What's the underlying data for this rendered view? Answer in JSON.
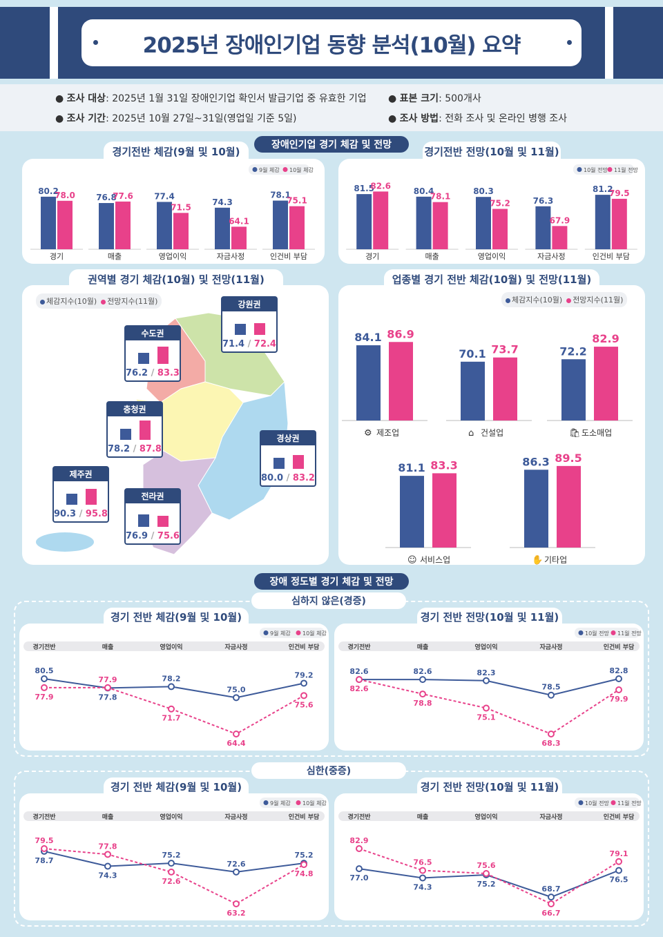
{
  "title": "2025년 장애인기업 동향 분석(10월) 요약",
  "info": {
    "target_label": "조사 대상",
    "target": ": 2025년 1월 31일 장애인기업 확인서 발급기업 중 유효한 기업",
    "period_label": "조사 기간",
    "period": ": 2025년 10월 27일~31일(영업일 기준 5일)",
    "sample_label": "표본 크기",
    "sample": ": 500개사",
    "method_label": "조사 방법",
    "method": ":  전화 조사 및 온라인 병행 조사"
  },
  "colors": {
    "series1": "#3d5a99",
    "series2": "#e8418a",
    "navy": "#2f4a7b"
  },
  "section1": "장애인기업 경기 체감 및 전망",
  "section2": "장애 정도별 경기 체감 및 전망",
  "mild": "심하지 않은(경증)",
  "severe": "심한(중증)",
  "chart_data": [
    {
      "id": "overall-perception",
      "type": "bar",
      "title": "경기전반 체감(9월 및 10월)",
      "categories": [
        "경기",
        "매출",
        "영업이익",
        "자금사정",
        "인건비 부담"
      ],
      "series": [
        {
          "name": "9월 체감",
          "values": [
            80.2,
            76.8,
            77.4,
            74.3,
            78.1
          ]
        },
        {
          "name": "10월 체감",
          "values": [
            78.0,
            77.6,
            71.5,
            64.1,
            75.1
          ]
        }
      ]
    },
    {
      "id": "overall-outlook",
      "type": "bar",
      "title": "경기전반 전망(10월 및 11월)",
      "categories": [
        "경기",
        "매출",
        "영업이익",
        "자금사정",
        "인건비 부담"
      ],
      "series": [
        {
          "name": "10월 전망",
          "values": [
            81.5,
            80.4,
            80.3,
            76.3,
            81.2
          ]
        },
        {
          "name": "11월 전망",
          "values": [
            82.6,
            78.1,
            75.2,
            67.9,
            79.5
          ]
        }
      ]
    },
    {
      "id": "regional",
      "type": "bar",
      "title": "권역별 경기 체감(10월) 및 전망(11월)",
      "categories": [
        "수도권",
        "강원권",
        "충청권",
        "경상권",
        "전라권",
        "제주권"
      ],
      "series": [
        {
          "name": "체감지수(10월)",
          "values": [
            76.2,
            71.4,
            78.2,
            80.0,
            76.9,
            90.3
          ]
        },
        {
          "name": "전망지수(11월)",
          "values": [
            83.3,
            72.4,
            87.8,
            83.2,
            75.6,
            95.8
          ]
        }
      ]
    },
    {
      "id": "industry",
      "type": "bar",
      "title": "업종별 경기 전반 체감(10월) 및 전망(11월)",
      "categories": [
        "제조업",
        "건설업",
        "도소매업",
        "서비스업",
        "기타업"
      ],
      "icons": [
        "gear-icon",
        "house-icon",
        "shop-icon",
        "smile-icon",
        "hand-icon"
      ],
      "series": [
        {
          "name": "체감지수(10월)",
          "values": [
            84.1,
            70.1,
            72.2,
            81.1,
            86.3
          ]
        },
        {
          "name": "전망지수(11월)",
          "values": [
            86.9,
            73.7,
            82.9,
            83.3,
            89.5
          ]
        }
      ]
    },
    {
      "id": "mild-perception",
      "type": "line",
      "title": "경기 전반 체감(9월 및 10월)",
      "categories": [
        "경기전반",
        "매출",
        "영업이익",
        "자금사정",
        "인건비 부담"
      ],
      "series": [
        {
          "name": "9월 체감",
          "values": [
            80.5,
            77.8,
            78.2,
            75.0,
            79.2
          ]
        },
        {
          "name": "10월 체감",
          "values": [
            77.9,
            77.9,
            71.7,
            64.4,
            75.6
          ]
        }
      ]
    },
    {
      "id": "mild-outlook",
      "type": "line",
      "title": "경기 전반 전망(10월 및 11월)",
      "categories": [
        "경기전반",
        "매출",
        "영업이익",
        "자금사정",
        "인건비 부담"
      ],
      "series": [
        {
          "name": "10월 전망",
          "values": [
            82.6,
            82.6,
            82.3,
            78.5,
            82.8
          ]
        },
        {
          "name": "11월 전망",
          "values": [
            82.6,
            78.8,
            75.1,
            68.3,
            79.9
          ]
        }
      ]
    },
    {
      "id": "severe-perception",
      "type": "line",
      "title": "경기 전반 체감(9월 및 10월)",
      "categories": [
        "경기전반",
        "매출",
        "영업이익",
        "자금사정",
        "인건비 부담"
      ],
      "series": [
        {
          "name": "9월 체감",
          "values": [
            78.7,
            74.3,
            75.2,
            72.6,
            75.2
          ]
        },
        {
          "name": "10월 체감",
          "values": [
            79.5,
            77.8,
            72.6,
            63.2,
            74.8
          ]
        }
      ]
    },
    {
      "id": "severe-outlook",
      "type": "line",
      "title": "경기 전반 전망(10월 및 11월)",
      "categories": [
        "경기전반",
        "매출",
        "영업이익",
        "자금사정",
        "인건비 부담"
      ],
      "series": [
        {
          "name": "10월 전망",
          "values": [
            77.0,
            74.3,
            75.2,
            68.7,
            76.5
          ]
        },
        {
          "name": "11월 전망",
          "values": [
            82.9,
            76.5,
            75.6,
            66.7,
            79.1
          ]
        }
      ]
    }
  ]
}
